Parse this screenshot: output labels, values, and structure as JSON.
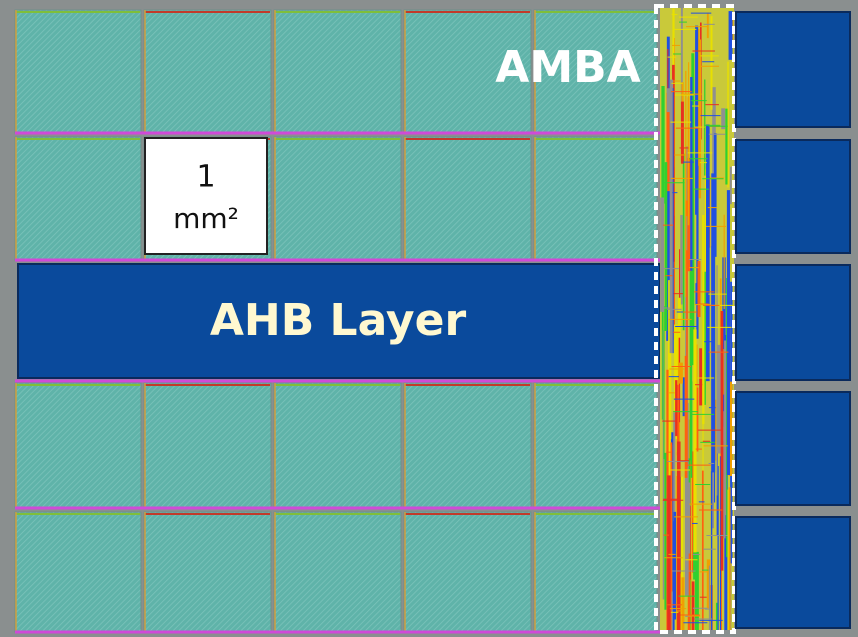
{
  "labels": {
    "amba": "AMBA",
    "tile_size_line1": "1",
    "tile_size_line2": "mm²",
    "ahb": "AHB Layer"
  }
}
